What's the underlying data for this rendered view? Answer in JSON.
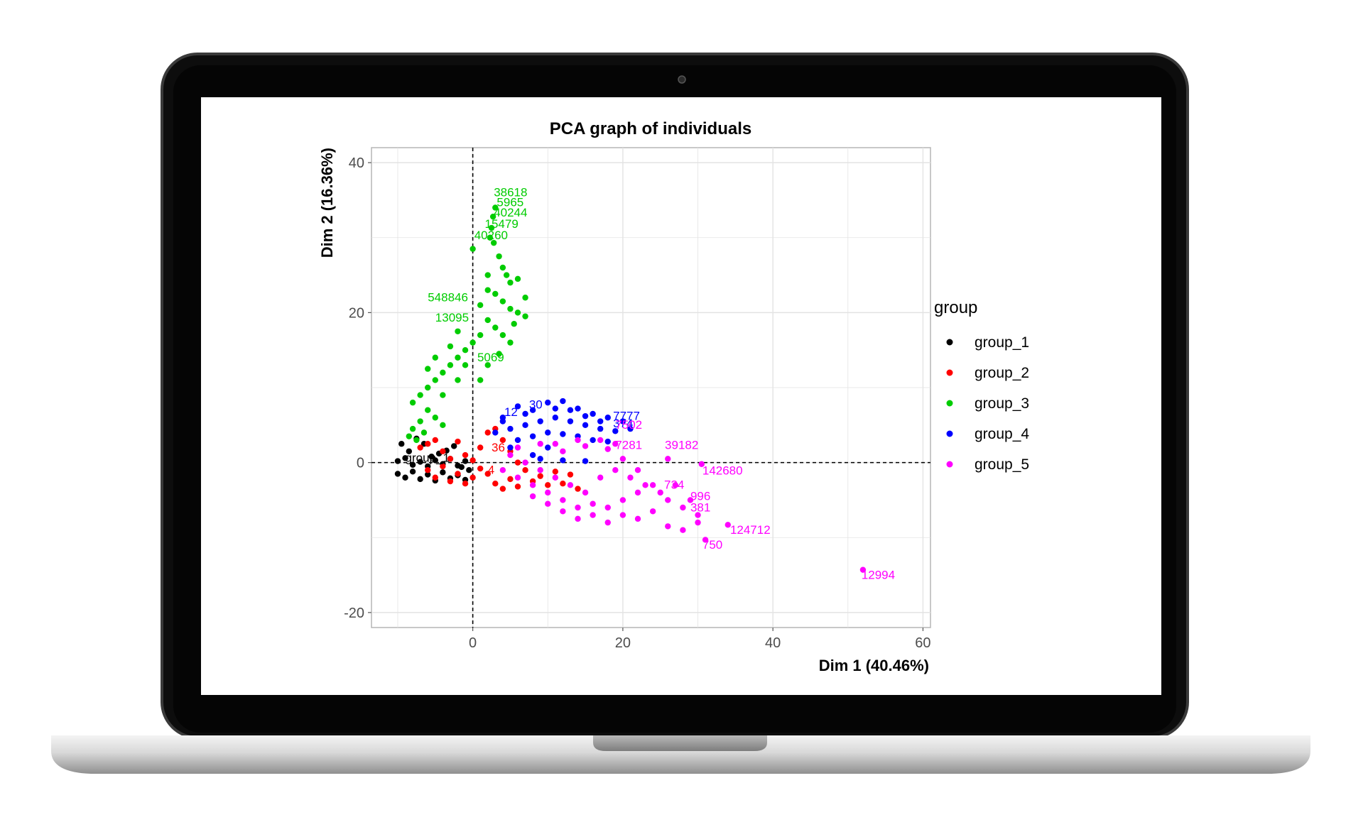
{
  "chart_data": {
    "type": "scatter",
    "title": "PCA graph of individuals",
    "xlabel": "Dim 1 (40.46%)",
    "ylabel": "Dim 2 (16.36%)",
    "xlim": [
      -13.5,
      61
    ],
    "ylim": [
      -22,
      42
    ],
    "x_ticks": [
      0,
      20,
      40,
      60
    ],
    "y_ticks": [
      -20,
      0,
      20,
      40
    ],
    "x_tick_labels": [
      "0",
      "20",
      "40",
      "60"
    ],
    "y_tick_labels": [
      "-20",
      "0",
      "20",
      "40"
    ],
    "grid": true,
    "legend_position": "right",
    "legend_title": "group",
    "reference_lines": {
      "x": 0,
      "y": 0
    },
    "series": [
      {
        "name": "group_1",
        "color": "#000000",
        "points": [
          [
            -10,
            0.2
          ],
          [
            -9,
            0.6
          ],
          [
            -8,
            -0.3
          ],
          [
            -7,
            0.1
          ],
          [
            -6,
            -0.5
          ],
          [
            -5,
            0.3
          ],
          [
            -4,
            -0.2
          ],
          [
            -3,
            0.5
          ],
          [
            -2,
            -0.4
          ],
          [
            -1,
            0.2
          ],
          [
            -10,
            -1.5
          ],
          [
            -9,
            -2
          ],
          [
            -8,
            -1.2
          ],
          [
            -7,
            -2.2
          ],
          [
            -6,
            -1.6
          ],
          [
            -5,
            -2.4
          ],
          [
            -4,
            -1.3
          ],
          [
            -3,
            -2.1
          ],
          [
            -2,
            -1.7
          ],
          [
            -1,
            -2.3
          ],
          [
            -0.5,
            -1
          ],
          [
            -8.5,
            1.5
          ],
          [
            -6.5,
            2.5
          ],
          [
            -4.5,
            1.2
          ],
          [
            -2.5,
            2.2
          ],
          [
            -9.5,
            2.5
          ],
          [
            -7.5,
            3.2
          ],
          [
            -5.5,
            0.8
          ],
          [
            -3.5,
            1.6
          ],
          [
            -1.5,
            -0.6
          ]
        ],
        "labels": [
          {
            "text": "group_1",
            "x": -9,
            "y": 0.1
          }
        ]
      },
      {
        "name": "group_2",
        "color": "#ff0000",
        "points": [
          [
            -7,
            2
          ],
          [
            -6,
            2.5
          ],
          [
            -5,
            3
          ],
          [
            -4,
            1.5
          ],
          [
            -3,
            0.5
          ],
          [
            -2,
            2.8
          ],
          [
            -1,
            1
          ],
          [
            0,
            0.3
          ],
          [
            1,
            2
          ],
          [
            2,
            4
          ],
          [
            3,
            4.5
          ],
          [
            4,
            3
          ],
          [
            5,
            1.5
          ],
          [
            6,
            0
          ],
          [
            7,
            -1
          ],
          [
            8,
            -2.5
          ],
          [
            9,
            -1.8
          ],
          [
            10,
            -3
          ],
          [
            -6,
            -1
          ],
          [
            -5,
            -2
          ],
          [
            -4,
            -0.5
          ],
          [
            -3,
            -2.5
          ],
          [
            -2,
            -1.5
          ],
          [
            -1,
            -2.8
          ],
          [
            0,
            -2
          ],
          [
            1,
            -0.8
          ],
          [
            2,
            -1.5
          ],
          [
            3,
            -2.8
          ],
          [
            4,
            -3.5
          ],
          [
            5,
            -2.2
          ],
          [
            6,
            -3.2
          ],
          [
            11,
            -1.2
          ],
          [
            12,
            -2.8
          ],
          [
            13,
            -1.6
          ],
          [
            14,
            -3.5
          ]
        ],
        "labels": [
          {
            "text": "36",
            "x": 2.5,
            "y": 1.5
          },
          {
            "text": "4",
            "x": 2,
            "y": -1.5
          }
        ]
      },
      {
        "name": "group_3",
        "color": "#00cc00",
        "points": [
          [
            3,
            34
          ],
          [
            2.7,
            32.8
          ],
          [
            2.5,
            31.3
          ],
          [
            2.3,
            30
          ],
          [
            2.8,
            29.3
          ],
          [
            3.5,
            27.5
          ],
          [
            4,
            26
          ],
          [
            4.5,
            25
          ],
          [
            5,
            24
          ],
          [
            2,
            23
          ],
          [
            3,
            22.5
          ],
          [
            4,
            21.5
          ],
          [
            5,
            20.5
          ],
          [
            6,
            20
          ],
          [
            7,
            19.5
          ],
          [
            2,
            19
          ],
          [
            3,
            18
          ],
          [
            4,
            17
          ],
          [
            5,
            16
          ],
          [
            1,
            17
          ],
          [
            0,
            16
          ],
          [
            -1,
            15
          ],
          [
            -2,
            14
          ],
          [
            -3,
            13
          ],
          [
            -4,
            12
          ],
          [
            -5,
            11
          ],
          [
            -6,
            10
          ],
          [
            -7,
            9
          ],
          [
            -8,
            8
          ],
          [
            -6,
            7
          ],
          [
            -5,
            6
          ],
          [
            -4,
            5
          ],
          [
            -7,
            5.5
          ],
          [
            -8,
            4.5
          ],
          [
            -3,
            15.5
          ],
          [
            -1,
            13
          ],
          [
            -2,
            11
          ],
          [
            -4,
            9
          ],
          [
            1,
            21
          ],
          [
            2,
            25
          ],
          [
            0,
            28.5
          ],
          [
            -2,
            17.5
          ],
          [
            -5,
            14
          ],
          [
            -6,
            12.5
          ],
          [
            3.5,
            14.5
          ],
          [
            2,
            13
          ],
          [
            1,
            11
          ],
          [
            -8.5,
            3.5
          ],
          [
            -7.5,
            3
          ],
          [
            -6.5,
            4
          ],
          [
            6,
            24.5
          ],
          [
            7,
            22
          ],
          [
            5.5,
            18.5
          ]
        ],
        "labels": [
          {
            "text": "38618",
            "x": 2.8,
            "y": 35.5
          },
          {
            "text": "5965",
            "x": 3.2,
            "y": 34.2
          },
          {
            "text": "40244",
            "x": 2.8,
            "y": 32.8
          },
          {
            "text": "15479",
            "x": 1.6,
            "y": 31.3
          },
          {
            "text": "40260",
            "x": 0.2,
            "y": 29.8
          },
          {
            "text": "548846",
            "x": -6,
            "y": 21.5
          },
          {
            "text": "13095",
            "x": -5,
            "y": 18.8
          },
          {
            "text": "5069",
            "x": 0.6,
            "y": 13.5
          }
        ]
      },
      {
        "name": "group_4",
        "color": "#0000ff",
        "points": [
          [
            4,
            6
          ],
          [
            6,
            7.5
          ],
          [
            8,
            7
          ],
          [
            10,
            8
          ],
          [
            12,
            8.2
          ],
          [
            14,
            7.2
          ],
          [
            16,
            6.5
          ],
          [
            18,
            6
          ],
          [
            20,
            5.5
          ],
          [
            5,
            4.5
          ],
          [
            7,
            5
          ],
          [
            9,
            5.5
          ],
          [
            11,
            6
          ],
          [
            13,
            5.5
          ],
          [
            15,
            5
          ],
          [
            17,
            4.5
          ],
          [
            19,
            4.2
          ],
          [
            21,
            4.5
          ],
          [
            6,
            3
          ],
          [
            8,
            3.5
          ],
          [
            10,
            4
          ],
          [
            12,
            3.8
          ],
          [
            14,
            3.5
          ],
          [
            16,
            3
          ],
          [
            18,
            2.8
          ],
          [
            9,
            0.5
          ],
          [
            12,
            0.3
          ],
          [
            15,
            0.2
          ],
          [
            4,
            5.5
          ],
          [
            7,
            6.5
          ],
          [
            11,
            7.2
          ],
          [
            13,
            7
          ],
          [
            15,
            6.2
          ],
          [
            17,
            5.5
          ],
          [
            3,
            4
          ],
          [
            5,
            2
          ],
          [
            10,
            2
          ],
          [
            8,
            1
          ]
        ],
        "labels": [
          {
            "text": "12",
            "x": 4.2,
            "y": 6.2
          },
          {
            "text": "30",
            "x": 7.5,
            "y": 7.2
          },
          {
            "text": "7777",
            "x": 18.7,
            "y": 5.7
          },
          {
            "text": "374",
            "x": 18.7,
            "y": 4.7
          }
        ]
      },
      {
        "name": "group_5",
        "color": "#ff00ff",
        "points": [
          [
            26,
            0.5
          ],
          [
            30.5,
            -0.2
          ],
          [
            34,
            -8.3
          ],
          [
            31,
            -10.3
          ],
          [
            52,
            -14.3
          ],
          [
            4,
            -1
          ],
          [
            6,
            -2
          ],
          [
            8,
            -3
          ],
          [
            10,
            -4
          ],
          [
            12,
            -5
          ],
          [
            14,
            -6
          ],
          [
            16,
            -7
          ],
          [
            18,
            -6
          ],
          [
            20,
            -5
          ],
          [
            22,
            -4
          ],
          [
            24,
            -3
          ],
          [
            26,
            -5
          ],
          [
            28,
            -6
          ],
          [
            30,
            -7
          ],
          [
            5,
            1
          ],
          [
            7,
            0
          ],
          [
            9,
            -1
          ],
          [
            11,
            -2
          ],
          [
            13,
            -3
          ],
          [
            15,
            -4
          ],
          [
            17,
            -2
          ],
          [
            19,
            -1
          ],
          [
            21,
            -2
          ],
          [
            23,
            -3
          ],
          [
            25,
            -4
          ],
          [
            27,
            -3
          ],
          [
            29,
            -5
          ],
          [
            10,
            -5.5
          ],
          [
            14,
            -7.5
          ],
          [
            18,
            -8
          ],
          [
            22,
            -7.5
          ],
          [
            26,
            -8.5
          ],
          [
            28,
            -9
          ],
          [
            30,
            -8
          ],
          [
            8,
            -4.5
          ],
          [
            12,
            -6.5
          ],
          [
            16,
            -5.5
          ],
          [
            20,
            -7
          ],
          [
            24,
            -6.5
          ],
          [
            6,
            2
          ],
          [
            9,
            2.5
          ],
          [
            12,
            1.5
          ],
          [
            15,
            2.2
          ],
          [
            18,
            1.8
          ],
          [
            20,
            0.5
          ],
          [
            22,
            -1
          ],
          [
            17,
            3
          ],
          [
            14,
            3
          ],
          [
            11,
            2.5
          ],
          [
            19,
            2.5
          ]
        ],
        "labels": [
          {
            "text": "39182",
            "x": 25.6,
            "y": 1.8
          },
          {
            "text": "142680",
            "x": 30.6,
            "y": -1.6
          },
          {
            "text": "124712",
            "x": 34.3,
            "y": -9.5
          },
          {
            "text": "750",
            "x": 30.6,
            "y": -11.5
          },
          {
            "text": "12994",
            "x": 51.8,
            "y": -15.5
          },
          {
            "text": "996",
            "x": 29,
            "y": -5
          },
          {
            "text": "381",
            "x": 29,
            "y": -6.5
          },
          {
            "text": "734",
            "x": 25.5,
            "y": -3.5
          },
          {
            "text": "7281",
            "x": 19,
            "y": 1.8
          },
          {
            "text": "7502",
            "x": 19,
            "y": 4.5
          }
        ]
      }
    ]
  }
}
